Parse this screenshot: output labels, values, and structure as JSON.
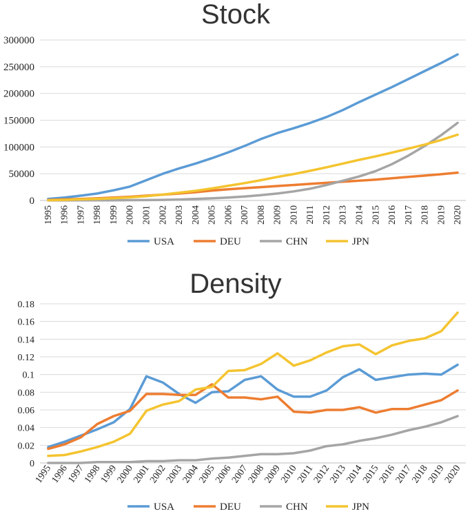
{
  "chart_data": [
    {
      "type": "line",
      "title": "Stock",
      "xlabel": "",
      "ylabel": "",
      "ylim": [
        0,
        300000
      ],
      "yticks": [
        "0",
        "50000",
        "100000",
        "150000",
        "200000",
        "250000",
        "300000"
      ],
      "grid": true,
      "legend": "bottom",
      "categories": [
        "1995",
        "1996",
        "1997",
        "1998",
        "1999",
        "2000",
        "2001",
        "2002",
        "2003",
        "2004",
        "2005",
        "2006",
        "2007",
        "2008",
        "2009",
        "2010",
        "2011",
        "2012",
        "2013",
        "2014",
        "2015",
        "2016",
        "2017",
        "2018",
        "2019",
        "2020"
      ],
      "series": [
        {
          "name": "USA",
          "color": "#5B9BD5",
          "values": [
            3000,
            5500,
            9000,
            13000,
            19000,
            26000,
            38000,
            50000,
            60000,
            69000,
            79000,
            90000,
            102000,
            115000,
            126000,
            135000,
            145000,
            156000,
            169000,
            184000,
            198000,
            212000,
            227000,
            242000,
            257000,
            273000
          ]
        },
        {
          "name": "DEU",
          "color": "#ED7D31",
          "values": [
            1000,
            2000,
            3000,
            4000,
            5500,
            7000,
            9000,
            11000,
            13000,
            15500,
            18500,
            21000,
            23000,
            25000,
            27000,
            29000,
            31000,
            33000,
            35000,
            37000,
            39000,
            41500,
            44000,
            46500,
            49000,
            52000
          ]
        },
        {
          "name": "CHN",
          "color": "#A5A5A5",
          "values": [
            100,
            150,
            200,
            300,
            400,
            600,
            800,
            1200,
            1800,
            2800,
            4000,
            5500,
            7500,
            10000,
            13000,
            17000,
            22000,
            29000,
            37000,
            45000,
            55000,
            68000,
            84000,
            102000,
            122000,
            145000
          ]
        },
        {
          "name": "JPN",
          "color": "#F4C430",
          "values": [
            500,
            1200,
            2000,
            3000,
            4200,
            5800,
            8000,
            11000,
            14500,
            18000,
            22500,
            27500,
            32500,
            38000,
            44000,
            49500,
            55500,
            62000,
            69000,
            76000,
            82500,
            89500,
            97000,
            104500,
            113000,
            123000
          ]
        }
      ]
    },
    {
      "type": "line",
      "title": "Density",
      "xlabel": "",
      "ylabel": "",
      "ylim": [
        0,
        0.18
      ],
      "yticks": [
        "0",
        "0.02",
        "0.04",
        "0.06",
        "0.08",
        "0.1",
        "0.12",
        "0.14",
        "0.16",
        "0.18"
      ],
      "grid": true,
      "legend": "bottom",
      "categories": [
        "1995",
        "1996",
        "1997",
        "1998",
        "1999",
        "2000",
        "2001",
        "2002",
        "2003",
        "2004",
        "2005",
        "2006",
        "2007",
        "2008",
        "2009",
        "2010",
        "2011",
        "2012",
        "2013",
        "2014",
        "2015",
        "2016",
        "2017",
        "2018",
        "2019",
        "2020"
      ],
      "series": [
        {
          "name": "USA",
          "color": "#5B9BD5",
          "values": [
            0.018,
            0.024,
            0.031,
            0.038,
            0.046,
            0.061,
            0.098,
            0.091,
            0.078,
            0.068,
            0.08,
            0.081,
            0.094,
            0.098,
            0.083,
            0.075,
            0.075,
            0.082,
            0.097,
            0.106,
            0.094,
            0.097,
            0.1,
            0.101,
            0.1,
            0.111
          ]
        },
        {
          "name": "DEU",
          "color": "#ED7D31",
          "values": [
            0.016,
            0.021,
            0.029,
            0.044,
            0.053,
            0.059,
            0.078,
            0.078,
            0.077,
            0.077,
            0.089,
            0.074,
            0.074,
            0.072,
            0.075,
            0.058,
            0.057,
            0.06,
            0.06,
            0.063,
            0.057,
            0.061,
            0.061,
            0.066,
            0.071,
            0.082
          ]
        },
        {
          "name": "CHN",
          "color": "#A5A5A5",
          "values": [
            0.0,
            0.0,
            0.0,
            0.001,
            0.001,
            0.001,
            0.002,
            0.002,
            0.003,
            0.003,
            0.005,
            0.006,
            0.008,
            0.01,
            0.01,
            0.011,
            0.014,
            0.019,
            0.021,
            0.025,
            0.028,
            0.032,
            0.037,
            0.041,
            0.046,
            0.053
          ]
        },
        {
          "name": "JPN",
          "color": "#F4C430",
          "values": [
            0.008,
            0.009,
            0.013,
            0.018,
            0.024,
            0.033,
            0.059,
            0.066,
            0.07,
            0.083,
            0.086,
            0.104,
            0.105,
            0.112,
            0.124,
            0.11,
            0.116,
            0.125,
            0.132,
            0.134,
            0.123,
            0.133,
            0.138,
            0.141,
            0.149,
            0.17
          ]
        }
      ]
    }
  ]
}
